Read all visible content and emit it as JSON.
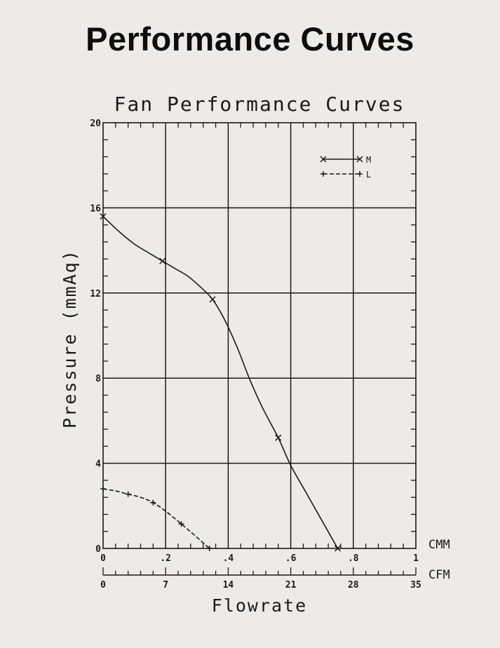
{
  "page_title": "Performance Curves",
  "chart_data": {
    "type": "line",
    "title": "Fan Performance Curves",
    "xlabel": "Flowrate",
    "ylabel": "Pressure (mmAq)",
    "xunit_primary": "CMM",
    "xunit_secondary": "CFM",
    "xlim": [
      0,
      1
    ],
    "ylim": [
      0,
      20
    ],
    "xticks": [
      "0",
      ".2",
      ".4",
      ".6",
      ".8",
      "1"
    ],
    "x2ticks": [
      "0",
      "7",
      "14",
      "21",
      "28",
      "35"
    ],
    "yticks": [
      "0",
      "4",
      "8",
      "12",
      "16",
      "20"
    ],
    "grid": true,
    "legend_position": "top-right",
    "series": [
      {
        "name": "M",
        "marker": "x",
        "style": "solid",
        "x": [
          0,
          0.19,
          0.35,
          0.56,
          0.75
        ],
        "y": [
          15.6,
          13.5,
          11.7,
          5.2,
          0
        ],
        "curve": [
          [
            0,
            15.6
          ],
          [
            0.05,
            14.9
          ],
          [
            0.1,
            14.3
          ],
          [
            0.15,
            13.85
          ],
          [
            0.19,
            13.5
          ],
          [
            0.23,
            13.15
          ],
          [
            0.27,
            12.8
          ],
          [
            0.31,
            12.3
          ],
          [
            0.35,
            11.7
          ],
          [
            0.39,
            10.7
          ],
          [
            0.43,
            9.4
          ],
          [
            0.47,
            7.9
          ],
          [
            0.51,
            6.6
          ],
          [
            0.56,
            5.2
          ],
          [
            0.6,
            3.9
          ],
          [
            0.65,
            2.6
          ],
          [
            0.7,
            1.3
          ],
          [
            0.75,
            0
          ]
        ]
      },
      {
        "name": "L",
        "marker": "+",
        "style": "dashed",
        "x": [
          0,
          0.08,
          0.16,
          0.25,
          0.34
        ],
        "y": [
          2.8,
          2.55,
          2.15,
          1.15,
          0
        ],
        "curve": [
          [
            0,
            2.8
          ],
          [
            0.04,
            2.7
          ],
          [
            0.08,
            2.55
          ],
          [
            0.12,
            2.4
          ],
          [
            0.16,
            2.15
          ],
          [
            0.2,
            1.75
          ],
          [
            0.25,
            1.15
          ],
          [
            0.29,
            0.65
          ],
          [
            0.34,
            0
          ]
        ]
      }
    ]
  }
}
